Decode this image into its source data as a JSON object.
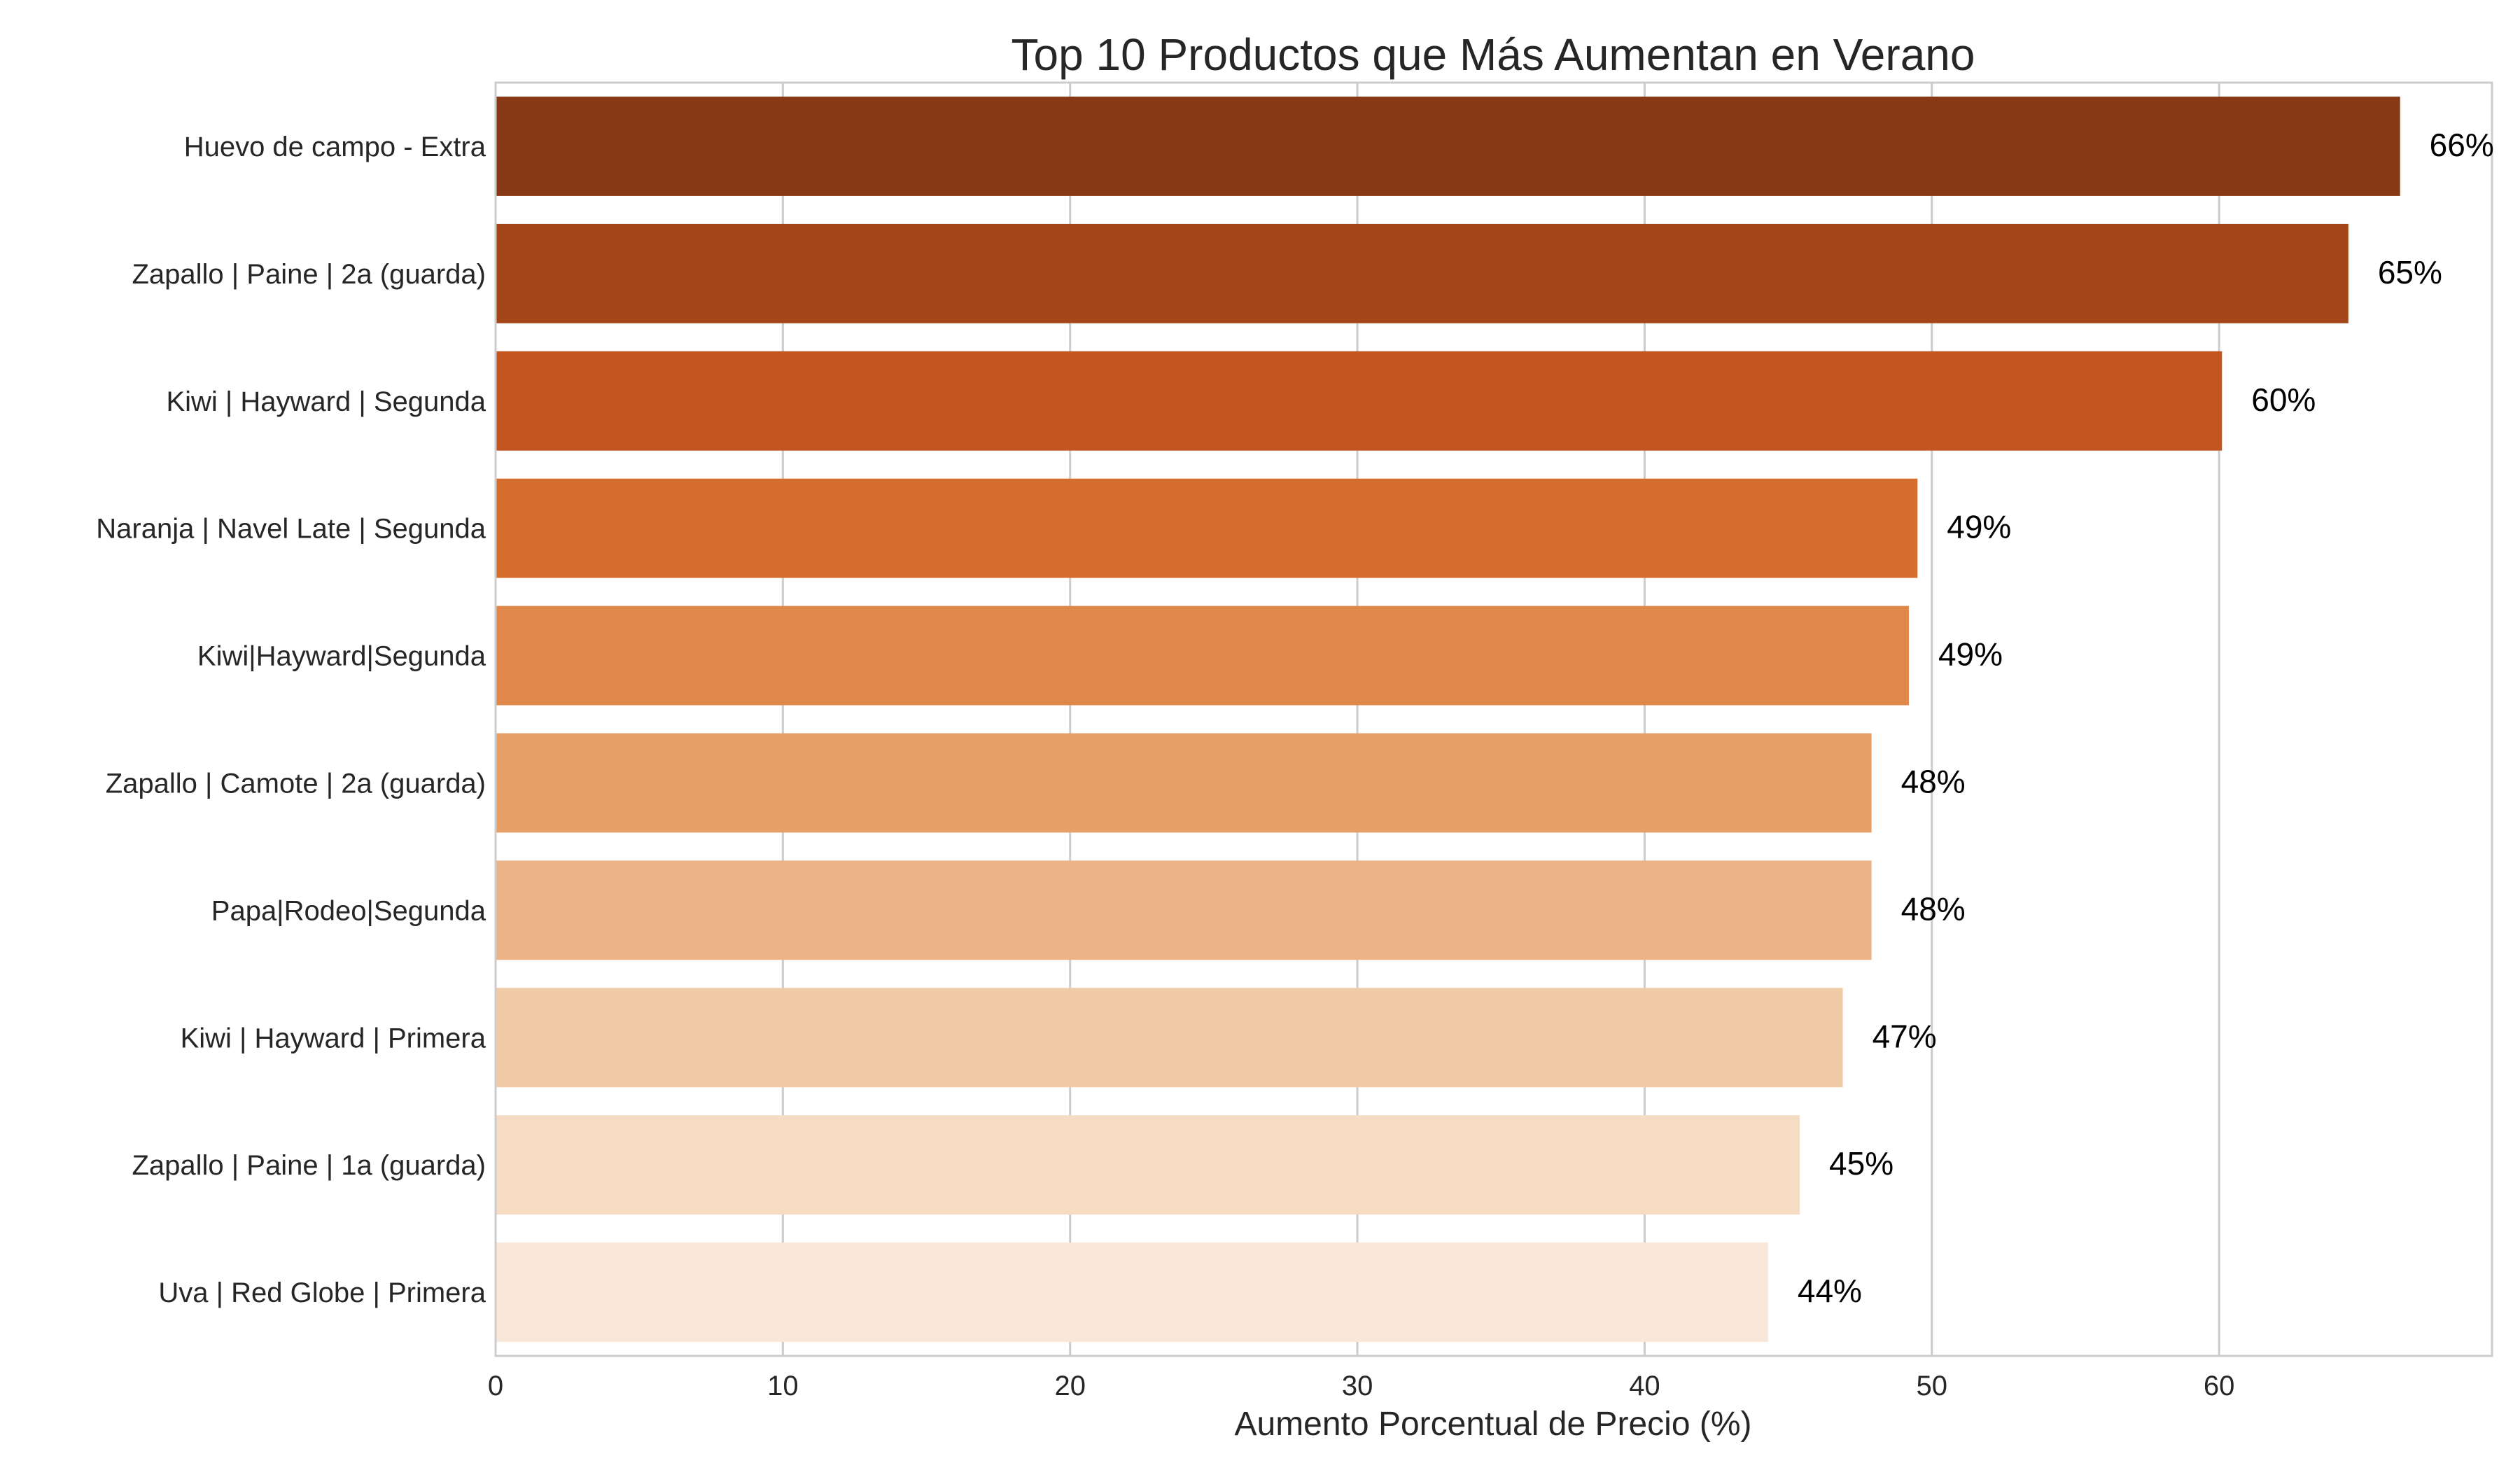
{
  "chart_data": {
    "type": "bar",
    "orientation": "horizontal",
    "title": "Top 10 Productos que Más Aumentan en Verano",
    "xlabel": "Aumento Porcentual de Precio (%)",
    "ylabel": "",
    "xlim": [
      0,
      69.5
    ],
    "xticks": [
      0,
      10,
      20,
      30,
      40,
      50,
      60
    ],
    "grid": true,
    "legend": "none",
    "categories": [
      "Huevo de campo - Extra",
      "Zapallo | Paine | 2a (guarda)",
      "Kiwi | Hayward | Segunda",
      "Naranja | Navel Late | Segunda",
      "Kiwi|Hayward|Segunda",
      "Zapallo | Camote | 2a (guarda)",
      "Papa|Rodeo|Segunda",
      "Kiwi | Hayward | Primera",
      "Zapallo | Paine | 1a (guarda)",
      "Uva | Red Globe | Primera"
    ],
    "values": [
      66.3,
      64.5,
      60.1,
      49.5,
      49.2,
      47.9,
      47.9,
      46.9,
      45.4,
      44.3
    ],
    "data_labels": [
      "66%",
      "65%",
      "60%",
      "49%",
      "49%",
      "48%",
      "48%",
      "47%",
      "45%",
      "44%"
    ],
    "colors": [
      "#873915",
      "#A4451A",
      "#C2541F",
      "#D46D2D",
      "#E0874A",
      "#E79F68",
      "#EBB386",
      "#F1CBA6",
      "#F5DCC2",
      "#F9E8DA"
    ]
  }
}
